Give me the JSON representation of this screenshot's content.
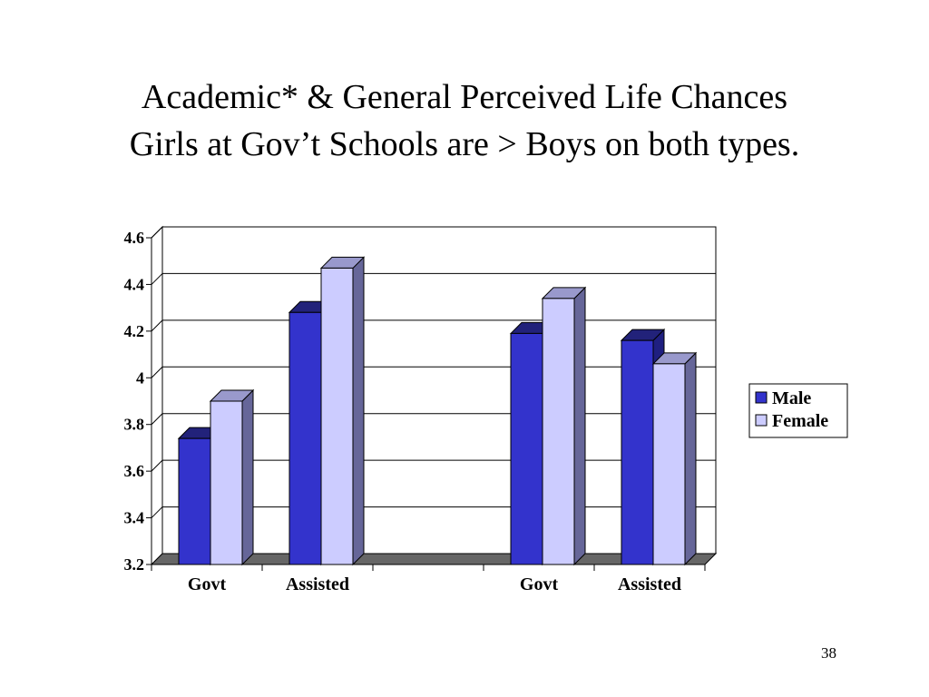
{
  "slide": {
    "title_line1": "Academic* & General Perceived Life Chances",
    "title_line2": "Girls at Gov’t Schools are > Boys on both types.",
    "page_number": "38"
  },
  "chart_data": {
    "type": "bar",
    "categories": [
      "Govt",
      "Assisted",
      "",
      "Govt",
      "Assisted"
    ],
    "series": [
      {
        "name": "Male",
        "values": [
          3.74,
          4.28,
          null,
          4.19,
          4.16
        ],
        "color": "#3333cc"
      },
      {
        "name": "Female",
        "values": [
          3.9,
          4.47,
          null,
          4.34,
          4.06
        ],
        "color": "#ccccff"
      }
    ],
    "ylim": [
      3.2,
      4.6
    ],
    "yticks": [
      "3.2",
      "3.4",
      "3.6",
      "3.8",
      "4",
      "4.2",
      "4.4",
      "4.6"
    ],
    "grid": true,
    "legend": "right",
    "three_d": true,
    "colors": {
      "floor": "#666666",
      "male_side": "#1f1f80",
      "female_side": "#666699",
      "female_top": "#9999cc",
      "male_top": "#22227a"
    }
  }
}
